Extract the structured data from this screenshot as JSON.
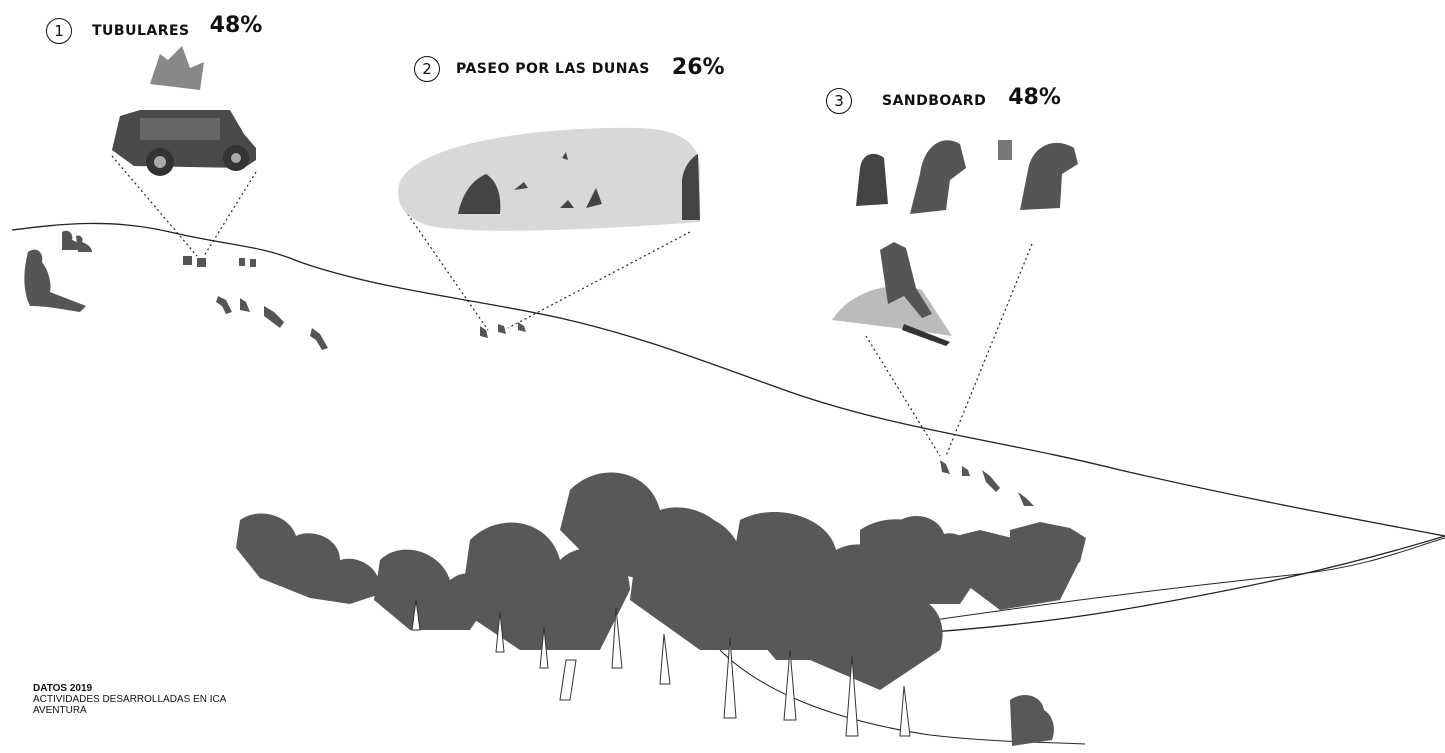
{
  "activities": [
    {
      "number": "1",
      "name": "TUBULARES",
      "percent": "48%"
    },
    {
      "number": "2",
      "name": "PASEO POR LAS DUNAS",
      "percent": "26%"
    },
    {
      "number": "3",
      "name": "SANDBOARD",
      "percent": "48%"
    }
  ],
  "footer": {
    "title": "DATOS 2019",
    "line1": "ACTIVIDADES DESARROLLADAS EN ICA",
    "line2": "AVENTURA"
  }
}
